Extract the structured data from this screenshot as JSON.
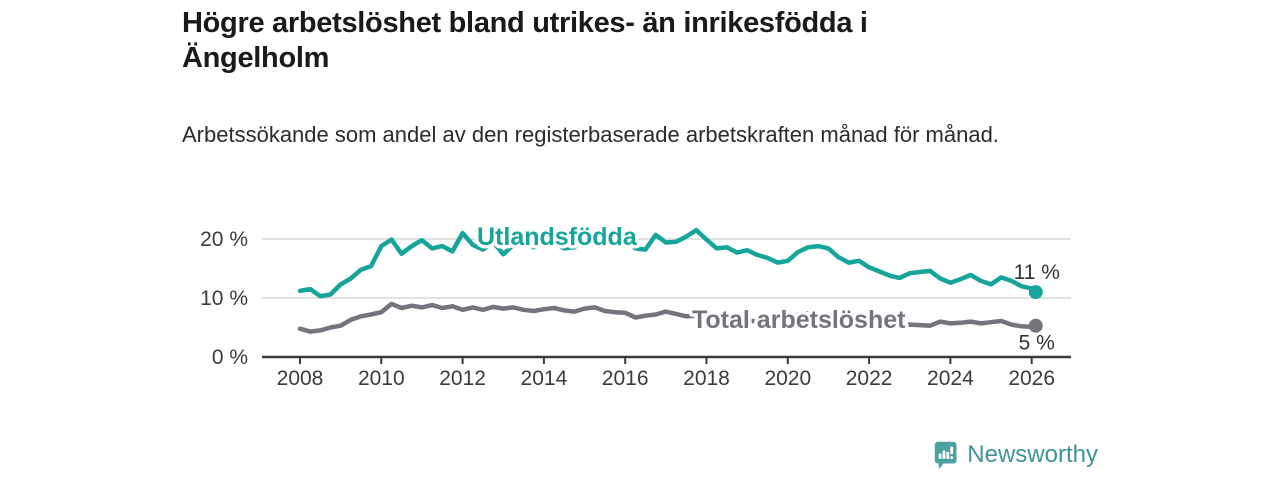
{
  "header": {
    "title": "Högre arbetslöshet bland utrikes- än inrikesfödda i Ängelholm",
    "subtitle": "Arbetssökande som andel av den registerbaserade arbetskraften månad för månad."
  },
  "branding": {
    "name": "Newsworthy",
    "icon": "bar-chart-speech-bubble-icon",
    "icon_color": "#4aa2a3",
    "text_color": "#3d9598"
  },
  "chart_data": {
    "type": "line",
    "title": "Högre arbetslöshet bland utrikes- än inrikesfödda i Ängelholm",
    "xlabel": "",
    "ylabel": "",
    "grid": "horizontal-only",
    "legend_position": "inline-labels-on-lines",
    "xlim": [
      2007.9,
      2027.0
    ],
    "ylim": [
      0,
      23
    ],
    "colors": {
      "axis": "#3a3a3a",
      "gridline": "#d9d9d9",
      "tick_text": "#3b3b3b",
      "end_label_text": "#333333"
    },
    "y_ticks": [
      {
        "value": 0,
        "label": "0 %"
      },
      {
        "value": 10,
        "label": "10 %"
      },
      {
        "value": 20,
        "label": "20 %"
      }
    ],
    "x_ticks": [
      {
        "value": 2008,
        "label": "2008"
      },
      {
        "value": 2010,
        "label": "2010"
      },
      {
        "value": 2012,
        "label": "2012"
      },
      {
        "value": 2014,
        "label": "2014"
      },
      {
        "value": 2016,
        "label": "2016"
      },
      {
        "value": 2018,
        "label": "2018"
      },
      {
        "value": 2020,
        "label": "2020"
      },
      {
        "value": 2022,
        "label": "2022"
      },
      {
        "value": 2024,
        "label": "2024"
      },
      {
        "value": 2026,
        "label": "2026"
      }
    ],
    "x": [
      2008.0,
      2008.25,
      2008.5,
      2008.75,
      2009.0,
      2009.25,
      2009.5,
      2009.75,
      2010.0,
      2010.25,
      2010.5,
      2010.75,
      2011.0,
      2011.25,
      2011.5,
      2011.75,
      2012.0,
      2012.25,
      2012.5,
      2012.75,
      2013.0,
      2013.25,
      2013.5,
      2013.75,
      2014.0,
      2014.25,
      2014.5,
      2014.75,
      2015.0,
      2015.25,
      2015.5,
      2015.75,
      2016.0,
      2016.25,
      2016.5,
      2016.75,
      2017.0,
      2017.25,
      2017.5,
      2017.75,
      2018.0,
      2018.25,
      2018.5,
      2018.75,
      2019.0,
      2019.25,
      2019.5,
      2019.75,
      2020.0,
      2020.25,
      2020.5,
      2020.75,
      2021.0,
      2021.25,
      2021.5,
      2021.75,
      2022.0,
      2022.25,
      2022.5,
      2022.75,
      2023.0,
      2023.25,
      2023.5,
      2023.75,
      2024.0,
      2024.25,
      2024.5,
      2024.75,
      2025.0,
      2025.25,
      2025.5,
      2025.75,
      2026.0,
      2026.1
    ],
    "series": [
      {
        "name": "Utlandsfödda",
        "color": "#16a49b",
        "end_label": "11 %",
        "end_value": 11,
        "values": [
          11.2,
          11.5,
          10.3,
          10.6,
          12.3,
          13.3,
          14.8,
          15.4,
          18.8,
          19.9,
          17.5,
          18.8,
          19.8,
          18.4,
          18.8,
          17.9,
          21.0,
          19.0,
          18.2,
          19.5,
          17.4,
          19.0,
          20.3,
          18.6,
          19.5,
          19.3,
          18.4,
          18.6,
          20.5,
          19.3,
          21.2,
          19.9,
          20.3,
          18.4,
          18.2,
          20.7,
          19.4,
          19.5,
          20.4,
          21.5,
          19.9,
          18.4,
          18.6,
          17.7,
          18.1,
          17.3,
          16.8,
          16.0,
          16.3,
          17.8,
          18.6,
          18.8,
          18.4,
          16.9,
          16.0,
          16.3,
          15.2,
          14.5,
          13.8,
          13.4,
          14.2,
          14.4,
          14.6,
          13.3,
          12.6,
          13.2,
          13.9,
          12.9,
          12.3,
          13.5,
          12.9,
          12.0,
          11.6,
          11.0
        ]
      },
      {
        "name": "Total arbetslöshet",
        "color": "#74747d",
        "end_label": "5 %",
        "end_value": 5,
        "values": [
          4.8,
          4.3,
          4.5,
          5.0,
          5.3,
          6.3,
          6.9,
          7.2,
          7.6,
          9.0,
          8.3,
          8.7,
          8.4,
          8.8,
          8.3,
          8.6,
          8.0,
          8.4,
          8.0,
          8.5,
          8.2,
          8.4,
          8.0,
          7.8,
          8.1,
          8.3,
          7.9,
          7.7,
          8.2,
          8.4,
          7.8,
          7.6,
          7.5,
          6.7,
          7.0,
          7.2,
          7.7,
          7.3,
          6.9,
          7.0,
          6.8,
          6.5,
          6.3,
          6.4,
          6.2,
          6.0,
          6.1,
          6.0,
          6.3,
          7.2,
          7.4,
          7.0,
          6.8,
          6.4,
          6.0,
          5.8,
          5.5,
          5.2,
          4.8,
          5.2,
          5.5,
          5.4,
          5.3,
          6.0,
          5.7,
          5.8,
          6.0,
          5.7,
          5.9,
          6.1,
          5.5,
          5.2,
          5.1,
          5.3
        ]
      }
    ]
  }
}
